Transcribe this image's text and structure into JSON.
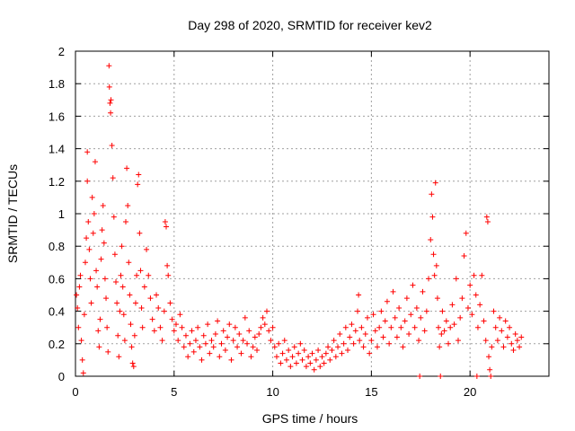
{
  "chart_data": {
    "type": "scatter",
    "title": "Day 298 of 2020, SRMTID for receiver kev2",
    "xlabel": "GPS time / hours",
    "ylabel": "SRMTID / TECUs",
    "xlim": [
      0,
      24
    ],
    "ylim": [
      0,
      2
    ],
    "xticks": [
      0,
      5,
      10,
      15,
      20
    ],
    "xtick_labels": [
      "0",
      "5",
      "10",
      "15",
      "20"
    ],
    "yticks": [
      0,
      0.2,
      0.4,
      0.6,
      0.8,
      1,
      1.2,
      1.4,
      1.6,
      1.8,
      2
    ],
    "ytick_labels": [
      "0",
      "0.2",
      "0.4",
      "0.6",
      "0.8",
      "1",
      "1.2",
      "1.4",
      "1.6",
      "1.8",
      "2"
    ],
    "grid": true,
    "marker": "+",
    "color": "#ff0000",
    "series": [
      {
        "name": "SRMTID",
        "points": [
          [
            0.05,
            0.5
          ],
          [
            0.1,
            0.42
          ],
          [
            0.15,
            0.3
          ],
          [
            0.2,
            0.55
          ],
          [
            0.25,
            0.62
          ],
          [
            0.3,
            0.22
          ],
          [
            0.35,
            0.1
          ],
          [
            0.4,
            0.02
          ],
          [
            0.45,
            0.38
          ],
          [
            0.5,
            0.7
          ],
          [
            0.55,
            0.85
          ],
          [
            0.6,
            1.2
          ],
          [
            0.6,
            1.38
          ],
          [
            0.65,
            0.95
          ],
          [
            0.7,
            0.78
          ],
          [
            0.75,
            0.6
          ],
          [
            0.8,
            0.45
          ],
          [
            0.85,
            1.1
          ],
          [
            0.9,
            0.88
          ],
          [
            0.95,
            1.0
          ],
          [
            1.0,
            1.32
          ],
          [
            1.05,
            0.65
          ],
          [
            1.1,
            0.55
          ],
          [
            1.15,
            0.28
          ],
          [
            1.2,
            0.18
          ],
          [
            1.25,
            0.35
          ],
          [
            1.3,
            0.72
          ],
          [
            1.35,
            0.9
          ],
          [
            1.4,
            1.05
          ],
          [
            1.45,
            0.82
          ],
          [
            1.5,
            0.6
          ],
          [
            1.55,
            0.48
          ],
          [
            1.6,
            0.3
          ],
          [
            1.65,
            0.15
          ],
          [
            1.7,
            1.91
          ],
          [
            1.72,
            1.78
          ],
          [
            1.75,
            1.68
          ],
          [
            1.78,
            1.62
          ],
          [
            1.8,
            1.7
          ],
          [
            1.85,
            1.42
          ],
          [
            1.9,
            1.22
          ],
          [
            1.95,
            0.98
          ],
          [
            2.0,
            0.75
          ],
          [
            2.05,
            0.58
          ],
          [
            2.1,
            0.45
          ],
          [
            2.15,
            0.25
          ],
          [
            2.2,
            0.12
          ],
          [
            2.25,
            0.4
          ],
          [
            2.3,
            0.62
          ],
          [
            2.35,
            0.8
          ],
          [
            2.4,
            0.55
          ],
          [
            2.45,
            0.38
          ],
          [
            2.5,
            0.22
          ],
          [
            2.55,
            0.95
          ],
          [
            2.6,
            1.28
          ],
          [
            2.65,
            1.05
          ],
          [
            2.7,
            0.7
          ],
          [
            2.75,
            0.5
          ],
          [
            2.8,
            0.32
          ],
          [
            2.85,
            0.18
          ],
          [
            2.9,
            0.08
          ],
          [
            2.95,
            0.06
          ],
          [
            3.0,
            0.25
          ],
          [
            3.05,
            0.45
          ],
          [
            3.1,
            0.62
          ],
          [
            3.15,
            1.18
          ],
          [
            3.2,
            1.24
          ],
          [
            3.25,
            0.88
          ],
          [
            3.3,
            0.65
          ],
          [
            3.35,
            0.42
          ],
          [
            3.4,
            0.3
          ],
          [
            3.5,
            0.55
          ],
          [
            3.6,
            0.78
          ],
          [
            3.7,
            0.62
          ],
          [
            3.8,
            0.48
          ],
          [
            3.9,
            0.35
          ],
          [
            4.0,
            0.28
          ],
          [
            4.1,
            0.5
          ],
          [
            4.2,
            0.42
          ],
          [
            4.3,
            0.3
          ],
          [
            4.4,
            0.22
          ],
          [
            4.5,
            0.4
          ],
          [
            4.55,
            0.95
          ],
          [
            4.6,
            0.92
          ],
          [
            4.65,
            0.68
          ],
          [
            4.7,
            0.62
          ],
          [
            4.8,
            0.45
          ],
          [
            4.9,
            0.35
          ],
          [
            5.0,
            0.28
          ],
          [
            5.1,
            0.32
          ],
          [
            5.2,
            0.22
          ],
          [
            5.3,
            0.38
          ],
          [
            5.4,
            0.3
          ],
          [
            5.5,
            0.18
          ],
          [
            5.6,
            0.25
          ],
          [
            5.7,
            0.12
          ],
          [
            5.8,
            0.2
          ],
          [
            5.9,
            0.28
          ],
          [
            6.0,
            0.15
          ],
          [
            6.1,
            0.22
          ],
          [
            6.2,
            0.3
          ],
          [
            6.3,
            0.18
          ],
          [
            6.4,
            0.1
          ],
          [
            6.5,
            0.25
          ],
          [
            6.6,
            0.2
          ],
          [
            6.7,
            0.32
          ],
          [
            6.8,
            0.14
          ],
          [
            6.9,
            0.22
          ],
          [
            7.0,
            0.18
          ],
          [
            7.1,
            0.26
          ],
          [
            7.2,
            0.34
          ],
          [
            7.3,
            0.12
          ],
          [
            7.4,
            0.2
          ],
          [
            7.5,
            0.28
          ],
          [
            7.6,
            0.16
          ],
          [
            7.7,
            0.24
          ],
          [
            7.8,
            0.32
          ],
          [
            7.9,
            0.1
          ],
          [
            8.0,
            0.22
          ],
          [
            8.1,
            0.3
          ],
          [
            8.2,
            0.18
          ],
          [
            8.3,
            0.26
          ],
          [
            8.4,
            0.14
          ],
          [
            8.5,
            0.22
          ],
          [
            8.6,
            0.36
          ],
          [
            8.7,
            0.2
          ],
          [
            8.8,
            0.28
          ],
          [
            8.9,
            0.12
          ],
          [
            9.0,
            0.18
          ],
          [
            9.1,
            0.24
          ],
          [
            9.2,
            0.16
          ],
          [
            9.3,
            0.26
          ],
          [
            9.4,
            0.3
          ],
          [
            9.5,
            0.36
          ],
          [
            9.6,
            0.32
          ],
          [
            9.7,
            0.4
          ],
          [
            9.8,
            0.28
          ],
          [
            9.9,
            0.22
          ],
          [
            10.0,
            0.3
          ],
          [
            10.1,
            0.18
          ],
          [
            10.2,
            0.12
          ],
          [
            10.3,
            0.2
          ],
          [
            10.4,
            0.08
          ],
          [
            10.5,
            0.14
          ],
          [
            10.6,
            0.22
          ],
          [
            10.7,
            0.1
          ],
          [
            10.8,
            0.16
          ],
          [
            10.9,
            0.06
          ],
          [
            11.0,
            0.12
          ],
          [
            11.1,
            0.18
          ],
          [
            11.2,
            0.08
          ],
          [
            11.3,
            0.14
          ],
          [
            11.4,
            0.2
          ],
          [
            11.5,
            0.1
          ],
          [
            11.6,
            0.16
          ],
          [
            11.7,
            0.06
          ],
          [
            11.8,
            0.12
          ],
          [
            11.9,
            0.08
          ],
          [
            12.0,
            0.14
          ],
          [
            12.1,
            0.04
          ],
          [
            12.2,
            0.1
          ],
          [
            12.3,
            0.16
          ],
          [
            12.4,
            0.06
          ],
          [
            12.5,
            0.12
          ],
          [
            12.6,
            0.08
          ],
          [
            12.7,
            0.14
          ],
          [
            12.8,
            0.18
          ],
          [
            12.9,
            0.1
          ],
          [
            13.0,
            0.16
          ],
          [
            13.1,
            0.22
          ],
          [
            13.2,
            0.12
          ],
          [
            13.3,
            0.18
          ],
          [
            13.4,
            0.26
          ],
          [
            13.5,
            0.14
          ],
          [
            13.6,
            0.2
          ],
          [
            13.7,
            0.3
          ],
          [
            13.8,
            0.16
          ],
          [
            13.9,
            0.24
          ],
          [
            14.0,
            0.32
          ],
          [
            14.1,
            0.2
          ],
          [
            14.2,
            0.28
          ],
          [
            14.3,
            0.4
          ],
          [
            14.35,
            0.5
          ],
          [
            14.4,
            0.22
          ],
          [
            14.5,
            0.3
          ],
          [
            14.6,
            0.18
          ],
          [
            14.7,
            0.26
          ],
          [
            14.8,
            0.36
          ],
          [
            14.9,
            0.14
          ],
          [
            15.0,
            0.22
          ],
          [
            15.1,
            0.38
          ],
          [
            15.2,
            0.28
          ],
          [
            15.3,
            0.18
          ],
          [
            15.4,
            0.3
          ],
          [
            15.5,
            0.4
          ],
          [
            15.6,
            0.24
          ],
          [
            15.7,
            0.34
          ],
          [
            15.8,
            0.46
          ],
          [
            15.9,
            0.2
          ],
          [
            16.0,
            0.3
          ],
          [
            16.1,
            0.52
          ],
          [
            16.2,
            0.36
          ],
          [
            16.3,
            0.24
          ],
          [
            16.4,
            0.42
          ],
          [
            16.5,
            0.3
          ],
          [
            16.6,
            0.18
          ],
          [
            16.7,
            0.34
          ],
          [
            16.8,
            0.48
          ],
          [
            16.9,
            0.26
          ],
          [
            17.0,
            0.38
          ],
          [
            17.1,
            0.56
          ],
          [
            17.2,
            0.3
          ],
          [
            17.3,
            0.42
          ],
          [
            17.4,
            0.22
          ],
          [
            17.45,
            0.0
          ],
          [
            17.5,
            0.36
          ],
          [
            17.6,
            0.52
          ],
          [
            17.7,
            0.28
          ],
          [
            17.8,
            0.4
          ],
          [
            17.9,
            0.6
          ],
          [
            18.0,
            0.84
          ],
          [
            18.05,
            1.12
          ],
          [
            18.1,
            0.98
          ],
          [
            18.15,
            0.75
          ],
          [
            18.2,
            0.62
          ],
          [
            18.25,
            1.19
          ],
          [
            18.3,
            0.68
          ],
          [
            18.35,
            0.48
          ],
          [
            18.4,
            0.3
          ],
          [
            18.45,
            0.18
          ],
          [
            18.5,
            0.0
          ],
          [
            18.55,
            0.26
          ],
          [
            18.6,
            0.4
          ],
          [
            18.7,
            0.28
          ],
          [
            18.8,
            0.34
          ],
          [
            18.9,
            0.2
          ],
          [
            19.0,
            0.3
          ],
          [
            19.1,
            0.44
          ],
          [
            19.2,
            0.32
          ],
          [
            19.3,
            0.6
          ],
          [
            19.4,
            0.22
          ],
          [
            19.5,
            0.36
          ],
          [
            19.6,
            0.48
          ],
          [
            19.7,
            0.74
          ],
          [
            19.8,
            0.88
          ],
          [
            19.9,
            0.42
          ],
          [
            20.0,
            0.56
          ],
          [
            20.1,
            0.38
          ],
          [
            20.2,
            0.62
          ],
          [
            20.3,
            0.5
          ],
          [
            20.35,
            0.0
          ],
          [
            20.4,
            0.3
          ],
          [
            20.5,
            0.44
          ],
          [
            20.6,
            0.62
          ],
          [
            20.7,
            0.34
          ],
          [
            20.8,
            0.22
          ],
          [
            20.85,
            0.98
          ],
          [
            20.9,
            0.95
          ],
          [
            20.95,
            0.12
          ],
          [
            21.0,
            0.04
          ],
          [
            21.05,
            0.0
          ],
          [
            21.1,
            0.18
          ],
          [
            21.2,
            0.4
          ],
          [
            21.3,
            0.3
          ],
          [
            21.4,
            0.22
          ],
          [
            21.5,
            0.36
          ],
          [
            21.6,
            0.28
          ],
          [
            21.7,
            0.18
          ],
          [
            21.8,
            0.34
          ],
          [
            21.9,
            0.24
          ],
          [
            22.0,
            0.3
          ],
          [
            22.1,
            0.2
          ],
          [
            22.2,
            0.16
          ],
          [
            22.3,
            0.26
          ],
          [
            22.4,
            0.22
          ],
          [
            22.5,
            0.18
          ],
          [
            22.6,
            0.24
          ]
        ]
      }
    ]
  }
}
